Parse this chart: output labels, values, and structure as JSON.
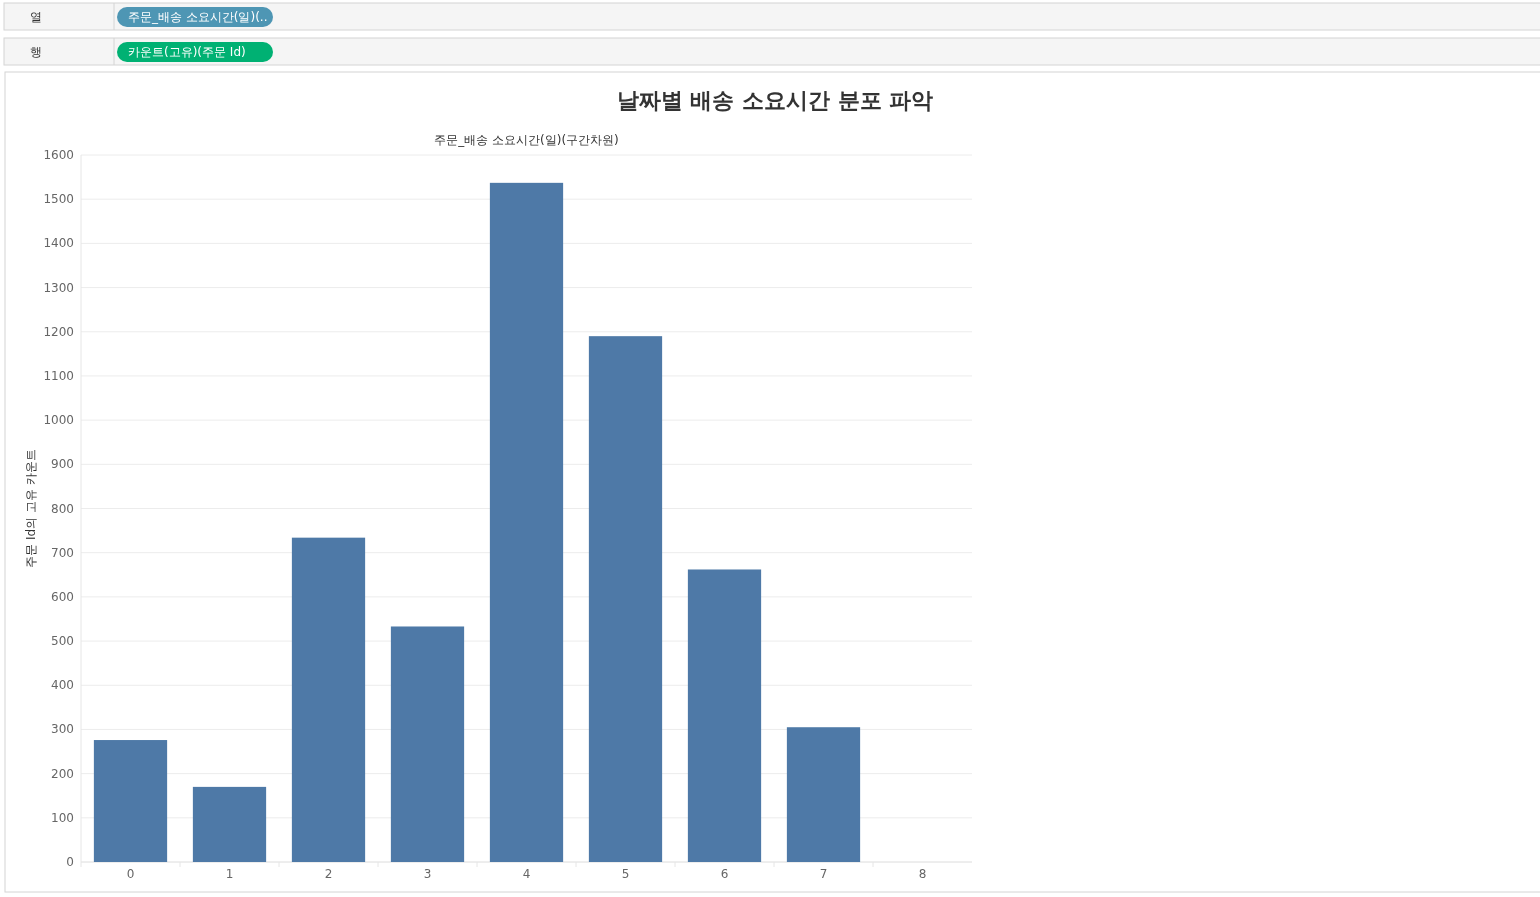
{
  "chart_data": {
    "type": "bar",
    "title": "날짜별 배송 소요시간 분포 파악",
    "xlabel": "주문_배송 소요시간(일)(구간차원)",
    "ylabel": "주문 Id의 고유 카운트",
    "annotations": [
      "열",
      "주문_배송 소요시간(일)(..",
      "행",
      "카운트(고유)(주문 Id)"
    ],
    "categories": [
      "0",
      "1",
      "2",
      "3",
      "4",
      "5",
      "6",
      "7",
      "8"
    ],
    "values": [
      276,
      170,
      734,
      533,
      1537,
      1190,
      662,
      305,
      null
    ],
    "color": "#4e79a7",
    "ylim": [
      0,
      1600
    ],
    "yticks": [
      0,
      100,
      200,
      300,
      400,
      500,
      600,
      700,
      800,
      900,
      1000,
      1100,
      1200,
      1300,
      1400,
      1500,
      1600
    ],
    "grid": "y"
  }
}
